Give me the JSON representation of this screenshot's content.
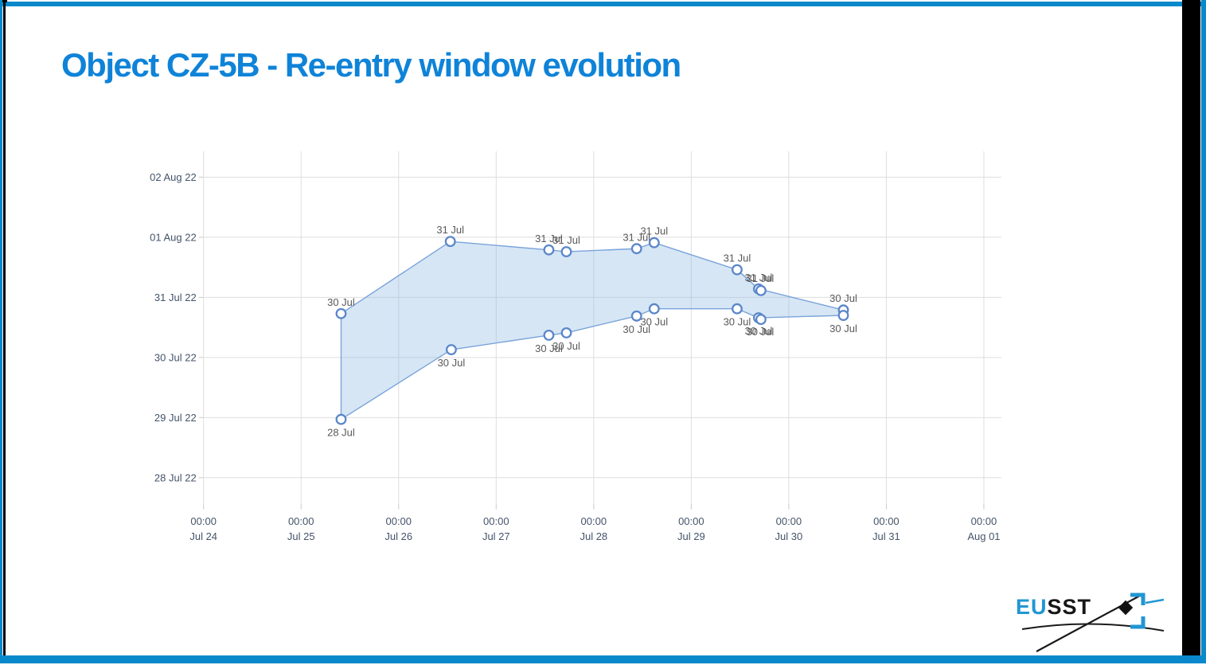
{
  "slide": {
    "title": "Object CZ-5B - Re-entry window evolution"
  },
  "colors": {
    "title": "#0e83d8",
    "border_blue": "#0989cb",
    "logo_blue": "#2196d3",
    "band_fill": "rgba(137,182,227,0.35)",
    "line": "#7aa3d9",
    "marker_stroke": "#5b87c9",
    "marker_fill": "#ffffff",
    "grid": "#dedede",
    "tick": "#c9c9c9",
    "axis_label": "#44546a",
    "data_label": "#595959"
  },
  "logo": {
    "eu": "EU",
    "sst": "SST"
  },
  "chart_data": {
    "type": "area",
    "subtype": "range-band-with-markers",
    "title": "",
    "xlabel": "",
    "ylabel": "",
    "grid": true,
    "legend": "none",
    "x_unit": "days since Jul 24 00:00 (prediction epoch)",
    "y_unit": "days since 28 Jul 22 00:00 (predicted re-entry date)",
    "xlim": [
      0,
      8.18
    ],
    "ylim": [
      -0.44,
      5.43
    ],
    "x_ticks": [
      {
        "time": "00:00",
        "date": "Jul 24",
        "value": 0
      },
      {
        "time": "00:00",
        "date": "Jul 25",
        "value": 1
      },
      {
        "time": "00:00",
        "date": "Jul 26",
        "value": 2
      },
      {
        "time": "00:00",
        "date": "Jul 27",
        "value": 3
      },
      {
        "time": "00:00",
        "date": "Jul 28",
        "value": 4
      },
      {
        "time": "00:00",
        "date": "Jul 29",
        "value": 5
      },
      {
        "time": "00:00",
        "date": "Jul 30",
        "value": 6
      },
      {
        "time": "00:00",
        "date": "Jul 31",
        "value": 7
      },
      {
        "time": "00:00",
        "date": "Aug 01",
        "value": 8
      }
    ],
    "y_ticks": [
      {
        "label": "02 Aug 22",
        "value": 5
      },
      {
        "label": "01 Aug 22",
        "value": 4
      },
      {
        "label": "31 Jul 22",
        "value": 3
      },
      {
        "label": "30 Jul 22",
        "value": 2
      },
      {
        "label": "29 Jul 22",
        "value": 1
      },
      {
        "label": "28 Jul 22",
        "value": 0
      }
    ],
    "series": [
      {
        "name": "window-end",
        "label_position": "above",
        "points": [
          {
            "x": 1.41,
            "y": 2.73,
            "label": "30 Jul"
          },
          {
            "x": 2.53,
            "y": 3.93,
            "label": "31 Jul"
          },
          {
            "x": 3.54,
            "y": 3.79,
            "label": "31 Jul"
          },
          {
            "x": 3.72,
            "y": 3.76,
            "label": "31 Jul"
          },
          {
            "x": 4.44,
            "y": 3.81,
            "label": "31 Jul"
          },
          {
            "x": 4.62,
            "y": 3.91,
            "label": "31 Jul"
          },
          {
            "x": 5.47,
            "y": 3.46,
            "label": "31 Jul"
          },
          {
            "x": 5.69,
            "y": 3.14,
            "label": "31 Jul",
            "double": true
          },
          {
            "x": 6.56,
            "y": 2.79,
            "label": "30 Jul"
          }
        ]
      },
      {
        "name": "window-start",
        "label_position": "below",
        "points": [
          {
            "x": 1.41,
            "y": 0.97,
            "label": "28 Jul"
          },
          {
            "x": 2.54,
            "y": 2.13,
            "label": "30 Jul"
          },
          {
            "x": 3.54,
            "y": 2.37,
            "label": "30 Jul"
          },
          {
            "x": 3.72,
            "y": 2.41,
            "label": "30 Jul"
          },
          {
            "x": 4.44,
            "y": 2.69,
            "label": "30 Jul"
          },
          {
            "x": 4.62,
            "y": 2.81,
            "label": "30 Jul"
          },
          {
            "x": 5.47,
            "y": 2.81,
            "label": "30 Jul"
          },
          {
            "x": 5.69,
            "y": 2.66,
            "label": "30 Jul",
            "double": true
          },
          {
            "x": 6.56,
            "y": 2.7,
            "label": "30 Jul"
          }
        ]
      }
    ]
  }
}
